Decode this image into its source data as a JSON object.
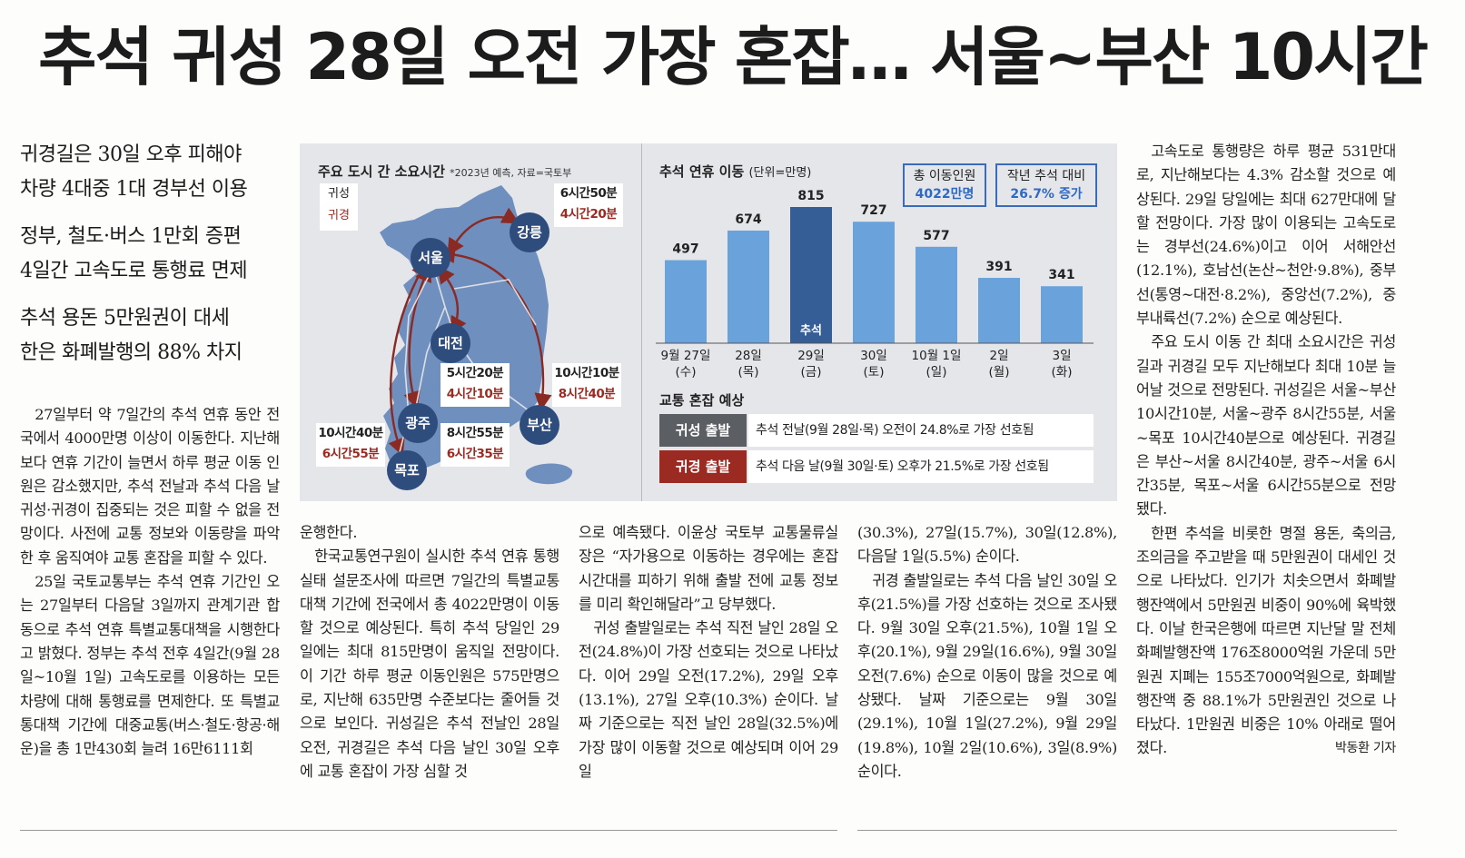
{
  "headline": "추석 귀성 28일 오전 가장 혼잡… 서울~부산 10시간",
  "subheads": [
    [
      "귀경길은 30일 오후 피해야",
      "차량 4대중 1대 경부선 이용"
    ],
    [
      "정부, 철도·버스 1만회 증편",
      "4일간 고속도로 통행료 면제"
    ],
    [
      "추석 용돈 5만원권이 대세",
      "한은 화폐발행의 88% 차지"
    ]
  ],
  "graphic": {
    "map_title": "주요 도시 간 소요시간",
    "map_note": "*2023년 예측, 자료=국토부",
    "legend": {
      "outbound": "귀성",
      "return": "귀경"
    },
    "cities": {
      "seoul": "서울",
      "gangneung": "강릉",
      "daejeon": "대전",
      "gwangju": "광주",
      "busan": "부산",
      "mokpo": "목포"
    },
    "times": {
      "gangneung": {
        "out": "6시간50분",
        "ret": "4시간20분"
      },
      "daejeon": {
        "out": "5시간20분",
        "ret": "4시간10분"
      },
      "busan": {
        "out": "10시간10분",
        "ret": "8시간40분"
      },
      "gwangju": {
        "out": "8시간55분",
        "ret": "6시간35분"
      },
      "mokpo": {
        "out": "10시간40분",
        "ret": "6시간55분"
      }
    },
    "chart_title": "추석 연휴 이동",
    "chart_unit": "(단위=만명)",
    "total_label": "총 이동인원",
    "total_value": "4022만명",
    "yoy_label": "작년 추석 대비",
    "yoy_value": "26.7% 증가",
    "congestion_title": "교통 혼잡 예상",
    "congestion": [
      {
        "tag": "귀성 출발",
        "text": "추석 전날(9월 28일·목) 오전이 24.8%로 가장 선호됨",
        "color": "#5b5e63"
      },
      {
        "tag": "귀경 출발",
        "text": "추석 다음 날(9월 30일·토) 오후가 21.5%로 가장 선호됨",
        "color": "#9a2a22"
      }
    ],
    "colors": {
      "bar": "#6aa3dc",
      "highlight": "#355d96",
      "route": "#8a2a22",
      "land": "#6f8fbf"
    }
  },
  "chart_data": {
    "type": "bar",
    "categories": [
      "9월 27일",
      "28일",
      "29일",
      "30일",
      "10월 1일",
      "2일",
      "3일"
    ],
    "weekdays": [
      "(수)",
      "(목)",
      "(금)",
      "(토)",
      "(일)",
      "(월)",
      "(화)"
    ],
    "values": [
      497,
      674,
      815,
      727,
      577,
      391,
      341
    ],
    "highlight_index": 2,
    "highlight_label": "추석",
    "title": "추석 연휴 이동",
    "ylabel": "(단위=만명)",
    "ylim": [
      0,
      815
    ]
  },
  "body": {
    "col1": [
      "27일부터 약 7일간의 추석 연휴 동안 전국에서 4000만명 이상이 이동한다. 지난해보다 연휴 기간이 늘면서 하루 평균 이동 인원은 감소했지만, 추석 전날과 추석 다음 날 귀성·귀경이 집중되는 것은 피할 수 없을 전망이다. 사전에 교통 정보와 이동량을 파악한 후 움직여야 교통 혼잡을 피할 수 있다.",
      "25일 국토교통부는 추석 연휴 기간인 오는 27일부터 다음달 3일까지 관계기관 합동으로 추석 연휴 특별교통대책을 시행한다고 밝혔다. 정부는 추석 전후 4일간(9월 28일~10월 1일) 고속도로를 이용하는 모든 차량에 대해 통행료를 면제한다. 또 특별교통대책 기간에 대중교통(버스·철도·항공·해운)을 총 1만430회 늘려 16만6111회"
    ],
    "col2": [
      "운행한다.",
      "한국교통연구원이 실시한 추석 연휴 통행 실태 설문조사에 따르면 7일간의 특별교통대책 기간에 전국에서 총 4022만명이 이동할 것으로 예상된다. 특히 추석 당일인 29일에는 최대 815만명이 움직일 전망이다. 이 기간 하루 평균 이동인원은 575만명으로, 지난해 635만명 수준보다는 줄어들 것으로 보인다. 귀성길은 추석 전날인 28일 오전, 귀경길은 추석 다음 날인 30일 오후에 교통 혼잡이 가장 심할 것"
    ],
    "col3": [
      "으로 예측됐다. 이윤상 국토부 교통물류실장은 “자가용으로 이동하는 경우에는 혼잡 시간대를 피하기 위해 출발 전에 교통 정보를 미리 확인해달라”고 당부했다.",
      "귀성 출발일로는 추석 직전 날인 28일 오전(24.8%)이 가장 선호되는 것으로 나타났다. 이어 29일 오전(17.2%), 29일 오후(13.1%), 27일 오후(10.3%) 순이다. 날짜 기준으로는 직전 날인 28일(32.5%)에 가장 많이 이동할 것으로 예상되며 이어 29일"
    ],
    "col4": [
      "(30.3%), 27일(15.7%), 30일(12.8%), 다음달 1일(5.5%) 순이다.",
      "귀경 출발일로는 추석 다음 날인 30일 오후(21.5%)를 가장 선호하는 것으로 조사됐다. 9월 30일 오후(21.5%), 10월 1일 오후(20.1%), 9월 29일(16.6%), 9월 30일 오전(7.6%) 순으로 이동이 많을 것으로 예상됐다. 날짜 기준으로는 9월 30일(29.1%), 10월 1일(27.2%), 9월 29일(19.8%), 10월 2일(10.6%), 3일(8.9%) 순이다."
    ],
    "col5": [
      "고속도로 통행량은 하루 평균 531만대로, 지난해보다는 4.3% 감소할 것으로 예상된다. 29일 당일에는 최대 627만대에 달할 전망이다. 가장 많이 이용되는 고속도로는 경부선(24.6%)이고 이어 서해안선(12.1%), 호남선(논산~천안·9.8%), 중부선(통영~대전·8.2%), 중앙선(7.2%), 중부내륙선(7.2%) 순으로 예상된다.",
      "주요 도시 이동 간 최대 소요시간은 귀성길과 귀경길 모두 지난해보다 최대 10분 늘어날 것으로 전망된다. 귀성길은 서울~부산 10시간10분, 서울~광주 8시간55분, 서울~목포 10시간40분으로 예상된다. 귀경길은 부산~서울 8시간40분, 광주~서울 6시간35분, 목포~서울 6시간55분으로 전망됐다.",
      "한편 추석을 비롯한 명절 용돈, 축의금, 조의금을 주고받을 때 5만원권이 대세인 것으로 나타났다. 인기가 치솟으면서 화폐발행잔액에서 5만원권 비중이 90%에 육박했다. 이날 한국은행에 따르면 지난달 말 전체 화폐발행잔액 176조8000억원 가운데 5만원권 지폐는 155조7000억원으로, 화폐발행잔액 중 88.1%가 5만원권인 것으로 나타났다. 1만원권 비중은 10% 아래로 떨어졌다."
    ],
    "byline": "박동환 기자"
  }
}
